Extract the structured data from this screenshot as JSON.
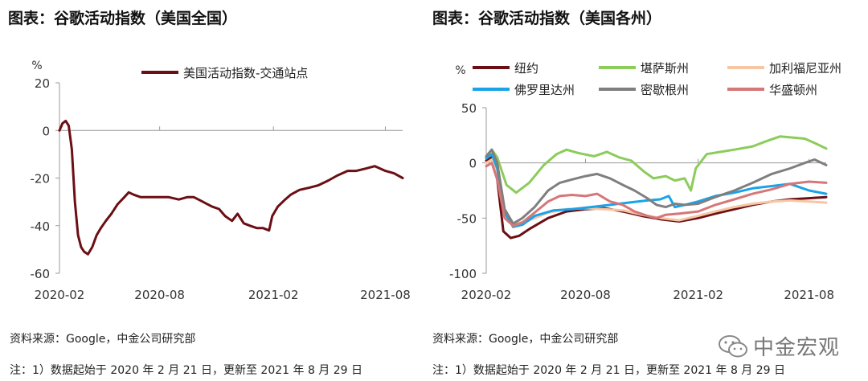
{
  "charts": {
    "left": {
      "title": "图表：谷歌活动指数（美国全国）"
    },
    "right": {
      "title": "图表：谷歌活动指数（美国各州）"
    }
  },
  "footer": {
    "source_left": "资料来源：Google，中金公司研究部",
    "note_left": "注：1）数据起始于 2020 年 2 月 21 日，更新至 2021 年 8 月 29 日",
    "source_right": "资料来源：Google，中金公司研究部",
    "note_right": "注：1）数据起始于 2020 年 2 月 21 日，更新至 2021 年 8 月 29 日",
    "watermark": "中金宏观",
    "watermark_icon": "wechat-icon"
  },
  "chart_data": [
    {
      "type": "line",
      "ylabel": "%",
      "ylim": [
        -60,
        20
      ],
      "yticks": [
        20,
        0,
        -20,
        -40,
        -60
      ],
      "xlim": [
        "2020-02-21",
        "2021-08-29"
      ],
      "xticks": [
        {
          "date": "2020-02-21",
          "label": "2020-02"
        },
        {
          "date": "2020-08-01",
          "label": "2020-08"
        },
        {
          "date": "2021-02-01",
          "label": "2021-02"
        },
        {
          "date": "2021-08-01",
          "label": "2021-08"
        }
      ],
      "legend_position": "top",
      "series": [
        {
          "name": "美国活动指数-交通站点",
          "color": "#6b0f14",
          "points": [
            [
              "2020-02-21",
              0
            ],
            [
              "2020-02-26",
              3
            ],
            [
              "2020-03-02",
              4
            ],
            [
              "2020-03-07",
              2
            ],
            [
              "2020-03-12",
              -8
            ],
            [
              "2020-03-17",
              -30
            ],
            [
              "2020-03-22",
              -44
            ],
            [
              "2020-03-27",
              -49
            ],
            [
              "2020-04-01",
              -51
            ],
            [
              "2020-04-07",
              -52
            ],
            [
              "2020-04-14",
              -49
            ],
            [
              "2020-04-21",
              -44
            ],
            [
              "2020-04-28",
              -41
            ],
            [
              "2020-05-06",
              -38
            ],
            [
              "2020-05-15",
              -35
            ],
            [
              "2020-05-25",
              -31
            ],
            [
              "2020-06-05",
              -28
            ],
            [
              "2020-06-12",
              -26
            ],
            [
              "2020-06-20",
              -27
            ],
            [
              "2020-07-01",
              -28
            ],
            [
              "2020-07-15",
              -28
            ],
            [
              "2020-08-01",
              -28
            ],
            [
              "2020-08-15",
              -28
            ],
            [
              "2020-09-01",
              -29
            ],
            [
              "2020-09-15",
              -28
            ],
            [
              "2020-09-25",
              -28
            ],
            [
              "2020-10-10",
              -30
            ],
            [
              "2020-10-25",
              -32
            ],
            [
              "2020-11-05",
              -33
            ],
            [
              "2020-11-15",
              -36
            ],
            [
              "2020-11-26",
              -38
            ],
            [
              "2020-12-05",
              -35
            ],
            [
              "2020-12-15",
              -39
            ],
            [
              "2020-12-25",
              -40
            ],
            [
              "2021-01-05",
              -41
            ],
            [
              "2021-01-15",
              -41
            ],
            [
              "2021-01-25",
              -42
            ],
            [
              "2021-01-30",
              -36
            ],
            [
              "2021-02-08",
              -32
            ],
            [
              "2021-02-20",
              -29
            ],
            [
              "2021-03-01",
              -27
            ],
            [
              "2021-03-15",
              -25
            ],
            [
              "2021-04-01",
              -24
            ],
            [
              "2021-04-15",
              -23
            ],
            [
              "2021-05-01",
              -21
            ],
            [
              "2021-05-15",
              -19
            ],
            [
              "2021-06-01",
              -17
            ],
            [
              "2021-06-15",
              -17
            ],
            [
              "2021-07-01",
              -16
            ],
            [
              "2021-07-15",
              -15
            ],
            [
              "2021-08-01",
              -17
            ],
            [
              "2021-08-15",
              -18
            ],
            [
              "2021-08-29",
              -20
            ]
          ]
        }
      ]
    },
    {
      "type": "line",
      "ylabel": "%",
      "ylim": [
        -100,
        50
      ],
      "yticks": [
        50,
        0,
        -50,
        -100
      ],
      "xlim": [
        "2020-02-21",
        "2021-08-29"
      ],
      "xticks": [
        {
          "date": "2020-02-21",
          "label": "2020-02"
        },
        {
          "date": "2020-08-01",
          "label": "2020-08"
        },
        {
          "date": "2021-02-01",
          "label": "2021-02"
        },
        {
          "date": "2021-08-01",
          "label": "2021-08"
        }
      ],
      "legend_position": "top",
      "series": [
        {
          "name": "纽约",
          "color": "#6b0f14",
          "points": [
            [
              "2020-02-21",
              2
            ],
            [
              "2020-03-01",
              5
            ],
            [
              "2020-03-10",
              -15
            ],
            [
              "2020-03-20",
              -62
            ],
            [
              "2020-04-01",
              -68
            ],
            [
              "2020-04-15",
              -66
            ],
            [
              "2020-05-01",
              -60
            ],
            [
              "2020-06-01",
              -50
            ],
            [
              "2020-07-01",
              -44
            ],
            [
              "2020-08-01",
              -42
            ],
            [
              "2020-09-01",
              -41
            ],
            [
              "2020-10-01",
              -44
            ],
            [
              "2020-11-01",
              -48
            ],
            [
              "2020-12-01",
              -51
            ],
            [
              "2021-01-01",
              -53
            ],
            [
              "2021-02-01",
              -50
            ],
            [
              "2021-03-01",
              -46
            ],
            [
              "2021-04-01",
              -42
            ],
            [
              "2021-05-01",
              -38
            ],
            [
              "2021-06-01",
              -35
            ],
            [
              "2021-07-01",
              -33
            ],
            [
              "2021-08-01",
              -32
            ],
            [
              "2021-08-29",
              -31
            ]
          ]
        },
        {
          "name": "堪萨斯州",
          "color": "#8ccc5a",
          "points": [
            [
              "2020-02-21",
              5
            ],
            [
              "2020-03-01",
              12
            ],
            [
              "2020-03-10",
              5
            ],
            [
              "2020-03-25",
              -20
            ],
            [
              "2020-04-10",
              -27
            ],
            [
              "2020-05-01",
              -18
            ],
            [
              "2020-05-25",
              -2
            ],
            [
              "2020-06-15",
              8
            ],
            [
              "2020-07-01",
              12
            ],
            [
              "2020-07-20",
              9
            ],
            [
              "2020-08-15",
              6
            ],
            [
              "2020-09-05",
              10
            ],
            [
              "2020-09-25",
              5
            ],
            [
              "2020-10-15",
              2
            ],
            [
              "2020-11-05",
              -8
            ],
            [
              "2020-11-20",
              -14
            ],
            [
              "2020-12-10",
              -12
            ],
            [
              "2020-12-25",
              -16
            ],
            [
              "2021-01-10",
              -14
            ],
            [
              "2021-01-20",
              -25
            ],
            [
              "2021-01-28",
              -5
            ],
            [
              "2021-02-15",
              8
            ],
            [
              "2021-03-10",
              10
            ],
            [
              "2021-04-01",
              12
            ],
            [
              "2021-05-01",
              15
            ],
            [
              "2021-05-25",
              20
            ],
            [
              "2021-06-15",
              24
            ],
            [
              "2021-07-05",
              23
            ],
            [
              "2021-07-25",
              22
            ],
            [
              "2021-08-10",
              18
            ],
            [
              "2021-08-29",
              13
            ]
          ]
        },
        {
          "name": "加利福尼亚州",
          "color": "#f7c6a3",
          "points": [
            [
              "2020-02-21",
              0
            ],
            [
              "2020-03-01",
              3
            ],
            [
              "2020-03-10",
              -10
            ],
            [
              "2020-03-22",
              -50
            ],
            [
              "2020-04-05",
              -56
            ],
            [
              "2020-05-01",
              -52
            ],
            [
              "2020-06-01",
              -45
            ],
            [
              "2020-07-01",
              -42
            ],
            [
              "2020-08-01",
              -41
            ],
            [
              "2020-09-01",
              -42
            ],
            [
              "2020-10-01",
              -43
            ],
            [
              "2020-11-01",
              -47
            ],
            [
              "2020-12-01",
              -50
            ],
            [
              "2021-01-01",
              -52
            ],
            [
              "2021-02-01",
              -48
            ],
            [
              "2021-03-01",
              -44
            ],
            [
              "2021-04-01",
              -40
            ],
            [
              "2021-05-01",
              -37
            ],
            [
              "2021-06-01",
              -35
            ],
            [
              "2021-07-01",
              -34
            ],
            [
              "2021-08-01",
              -35
            ],
            [
              "2021-08-29",
              -36
            ]
          ]
        },
        {
          "name": "佛罗里达州",
          "color": "#1aa3e8",
          "points": [
            [
              "2020-02-21",
              4
            ],
            [
              "2020-03-01",
              8
            ],
            [
              "2020-03-10",
              -5
            ],
            [
              "2020-03-22",
              -45
            ],
            [
              "2020-04-05",
              -58
            ],
            [
              "2020-04-20",
              -56
            ],
            [
              "2020-05-10",
              -48
            ],
            [
              "2020-06-10",
              -43
            ],
            [
              "2020-07-10",
              -42
            ],
            [
              "2020-08-10",
              -40
            ],
            [
              "2020-09-10",
              -38
            ],
            [
              "2020-10-10",
              -36
            ],
            [
              "2020-11-10",
              -34
            ],
            [
              "2020-12-01",
              -33
            ],
            [
              "2020-12-15",
              -30
            ],
            [
              "2020-12-25",
              -40
            ],
            [
              "2021-01-10",
              -38
            ],
            [
              "2021-02-01",
              -35
            ],
            [
              "2021-03-01",
              -30
            ],
            [
              "2021-04-01",
              -27
            ],
            [
              "2021-05-01",
              -23
            ],
            [
              "2021-06-01",
              -21
            ],
            [
              "2021-07-01",
              -19
            ],
            [
              "2021-08-01",
              -25
            ],
            [
              "2021-08-29",
              -28
            ]
          ]
        },
        {
          "name": "密歇根州",
          "color": "#7f7f7f",
          "points": [
            [
              "2020-02-21",
              6
            ],
            [
              "2020-03-01",
              12
            ],
            [
              "2020-03-10",
              0
            ],
            [
              "2020-03-22",
              -42
            ],
            [
              "2020-04-05",
              -55
            ],
            [
              "2020-04-20",
              -50
            ],
            [
              "2020-05-10",
              -40
            ],
            [
              "2020-06-01",
              -25
            ],
            [
              "2020-06-20",
              -18
            ],
            [
              "2020-07-10",
              -15
            ],
            [
              "2020-08-01",
              -12
            ],
            [
              "2020-08-20",
              -10
            ],
            [
              "2020-09-10",
              -14
            ],
            [
              "2020-10-01",
              -20
            ],
            [
              "2020-10-20",
              -25
            ],
            [
              "2020-11-10",
              -32
            ],
            [
              "2020-11-25",
              -38
            ],
            [
              "2020-12-10",
              -40
            ],
            [
              "2020-12-25",
              -37
            ],
            [
              "2021-01-10",
              -38
            ],
            [
              "2021-02-01",
              -37
            ],
            [
              "2021-03-01",
              -31
            ],
            [
              "2021-04-01",
              -25
            ],
            [
              "2021-05-01",
              -18
            ],
            [
              "2021-06-01",
              -10
            ],
            [
              "2021-07-01",
              -5
            ],
            [
              "2021-07-25",
              0
            ],
            [
              "2021-08-10",
              3
            ],
            [
              "2021-08-29",
              -2
            ]
          ]
        },
        {
          "name": "华盛顿州",
          "color": "#d57778",
          "points": [
            [
              "2020-02-21",
              -3
            ],
            [
              "2020-03-01",
              0
            ],
            [
              "2020-03-10",
              -15
            ],
            [
              "2020-03-22",
              -50
            ],
            [
              "2020-04-05",
              -57
            ],
            [
              "2020-04-20",
              -54
            ],
            [
              "2020-05-10",
              -45
            ],
            [
              "2020-06-01",
              -35
            ],
            [
              "2020-06-20",
              -30
            ],
            [
              "2020-07-10",
              -29
            ],
            [
              "2020-08-01",
              -30
            ],
            [
              "2020-08-20",
              -28
            ],
            [
              "2020-09-10",
              -35
            ],
            [
              "2020-10-01",
              -38
            ],
            [
              "2020-10-20",
              -44
            ],
            [
              "2020-11-10",
              -48
            ],
            [
              "2020-11-25",
              -50
            ],
            [
              "2020-12-10",
              -47
            ],
            [
              "2021-01-01",
              -46
            ],
            [
              "2021-02-01",
              -44
            ],
            [
              "2021-03-01",
              -38
            ],
            [
              "2021-04-01",
              -33
            ],
            [
              "2021-05-01",
              -28
            ],
            [
              "2021-06-01",
              -24
            ],
            [
              "2021-07-01",
              -19
            ],
            [
              "2021-08-01",
              -17
            ],
            [
              "2021-08-29",
              -18
            ]
          ]
        }
      ]
    }
  ]
}
